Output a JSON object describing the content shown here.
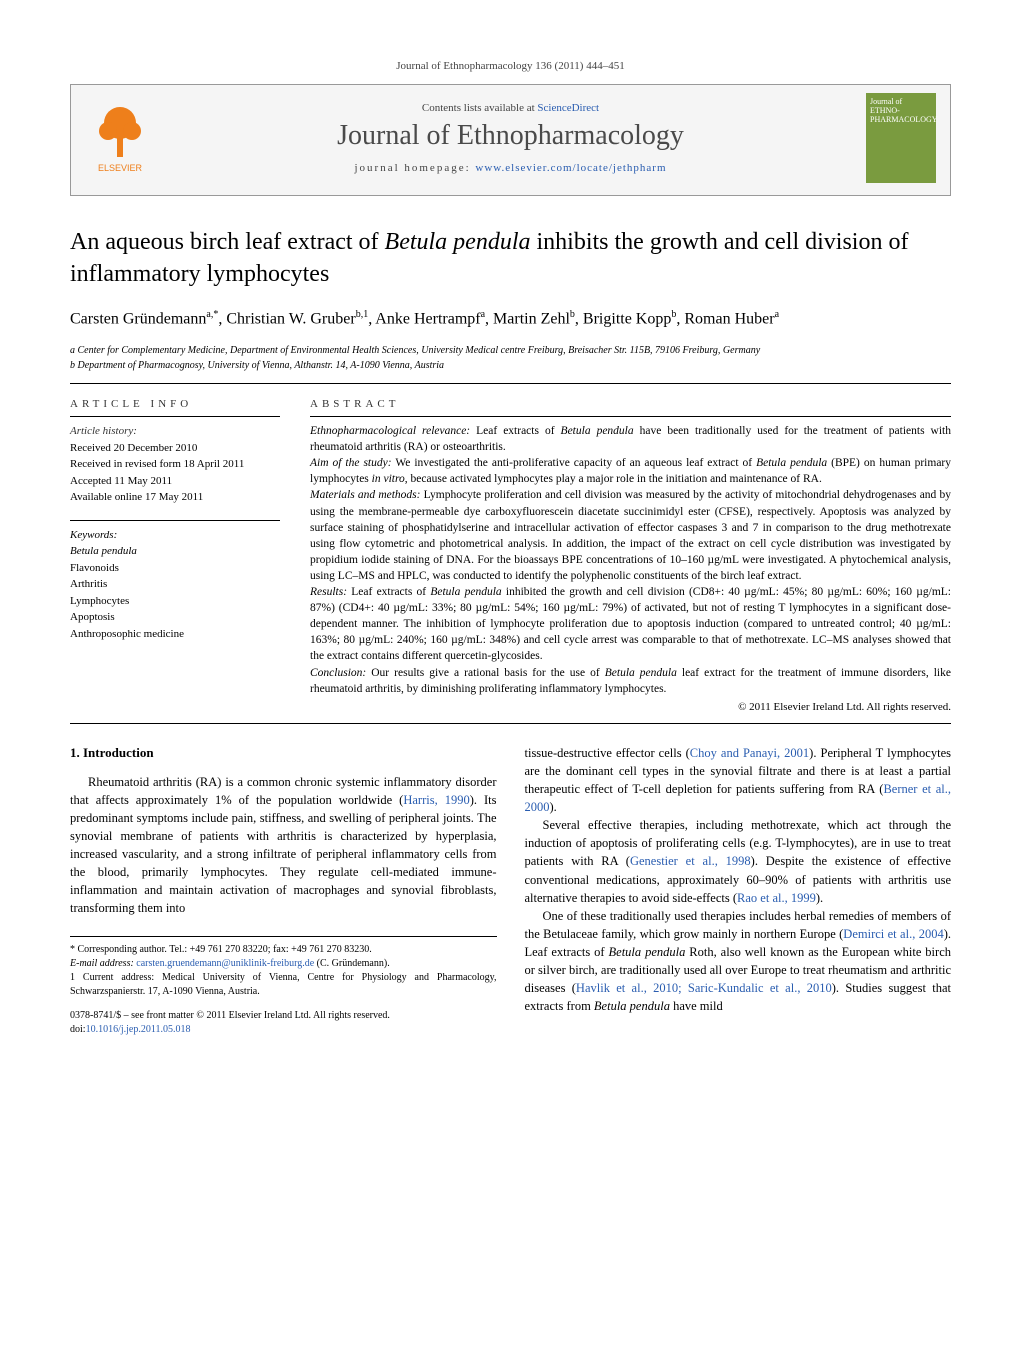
{
  "top_citation": "Journal of Ethnopharmacology 136 (2011) 444–451",
  "header": {
    "contents_prefix": "Contents lists available at ",
    "contents_link": "ScienceDirect",
    "journal_name": "Journal of Ethnopharmacology",
    "homepage_prefix": "journal homepage: ",
    "homepage_link": "www.elsevier.com/locate/jethpharm",
    "left_logo_label": "ELSEVIER",
    "right_logo_lines": [
      "Journal of",
      "ETHNO-",
      "PHARMACOLOGY"
    ]
  },
  "title_parts": {
    "before_em": "An aqueous birch leaf extract of ",
    "em": "Betula pendula",
    "after_em": " inhibits the growth and cell division of inflammatory lymphocytes"
  },
  "authors_html": "Carsten Gründemann<sup>a,*</sup>, Christian W. Gruber<sup>b,1</sup>, Anke Hertrampf<sup>a</sup>, Martin Zehl<sup>b</sup>, Brigitte Kopp<sup>b</sup>, Roman Huber<sup>a</sup>",
  "affiliations": [
    "a Center for Complementary Medicine, Department of Environmental Health Sciences, University Medical centre Freiburg, Breisacher Str. 115B, 79106 Freiburg, Germany",
    "b Department of Pharmacognosy, University of Vienna, Althanstr. 14, A-1090 Vienna, Austria"
  ],
  "article_info": {
    "label": "article info",
    "history_head": "Article history:",
    "history": [
      "Received 20 December 2010",
      "Received in revised form 18 April 2011",
      "Accepted 11 May 2011",
      "Available online 17 May 2011"
    ],
    "keywords_head": "Keywords:",
    "keywords": [
      "Betula pendula",
      "Flavonoids",
      "Arthritis",
      "Lymphocytes",
      "Apoptosis",
      "Anthroposophic medicine"
    ]
  },
  "abstract": {
    "label": "abstract",
    "paras": [
      {
        "label": "Ethnopharmacological relevance:",
        "text": " Leaf extracts of Betula pendula have been traditionally used for the treatment of patients with rheumatoid arthritis (RA) or osteoarthritis."
      },
      {
        "label": "Aim of the study:",
        "text": " We investigated the anti-proliferative capacity of an aqueous leaf extract of Betula pendula (BPE) on human primary lymphocytes in vitro, because activated lymphocytes play a major role in the initiation and maintenance of RA."
      },
      {
        "label": "Materials and methods:",
        "text": " Lymphocyte proliferation and cell division was measured by the activity of mitochondrial dehydrogenases and by using the membrane-permeable dye carboxyfluorescein diacetate succinimidyl ester (CFSE), respectively. Apoptosis was analyzed by surface staining of phosphatidylserine and intracellular activation of effector caspases 3 and 7 in comparison to the drug methotrexate using flow cytometric and photometrical analysis. In addition, the impact of the extract on cell cycle distribution was investigated by propidium iodide staining of DNA. For the bioassays BPE concentrations of 10–160 µg/mL were investigated. A phytochemical analysis, using LC–MS and HPLC, was conducted to identify the polyphenolic constituents of the birch leaf extract."
      },
      {
        "label": "Results:",
        "text": " Leaf extracts of Betula pendula inhibited the growth and cell division (CD8+: 40 µg/mL: 45%; 80 µg/mL: 60%; 160 µg/mL: 87%) (CD4+: 40 µg/mL: 33%; 80 µg/mL: 54%; 160 µg/mL: 79%) of activated, but not of resting T lymphocytes in a significant dose-dependent manner. The inhibition of lymphocyte proliferation due to apoptosis induction (compared to untreated control; 40 µg/mL: 163%; 80 µg/mL: 240%; 160 µg/mL: 348%) and cell cycle arrest was comparable to that of methotrexate. LC–MS analyses showed that the extract contains different quercetin-glycosides."
      },
      {
        "label": "Conclusion:",
        "text": " Our results give a rational basis for the use of Betula pendula leaf extract for the treatment of immune disorders, like rheumatoid arthritis, by diminishing proliferating inflammatory lymphocytes."
      }
    ],
    "copyright": "© 2011 Elsevier Ireland Ltd. All rights reserved."
  },
  "intro": {
    "head": "1. Introduction",
    "left_paras": [
      "Rheumatoid arthritis (RA) is a common chronic systemic inflammatory disorder that affects approximately 1% of the population worldwide (<a class=\"cite\">Harris, 1990</a>). Its predominant symptoms include pain, stiffness, and swelling of peripheral joints. The synovial membrane of patients with arthritis is characterized by hyperplasia, increased vascularity, and a strong infiltrate of peripheral inflammatory cells from the blood, primarily lymphocytes. They regulate cell-mediated immune-inflammation and maintain activation of macrophages and synovial fibroblasts, transforming them into"
    ],
    "right_paras": [
      "tissue-destructive effector cells (<a class=\"cite\">Choy and Panayi, 2001</a>). Peripheral T lymphocytes are the dominant cell types in the synovial filtrate and there is at least a partial therapeutic effect of T-cell depletion for patients suffering from RA (<a class=\"cite\">Berner et al., 2000</a>).",
      "Several effective therapies, including methotrexate, which act through the induction of apoptosis of proliferating cells (e.g. T-lymphocytes), are in use to treat patients with RA (<a class=\"cite\">Genestier et al., 1998</a>). Despite the existence of effective conventional medications, approximately 60–90% of patients with arthritis use alternative therapies to avoid side-effects (<a class=\"cite\">Rao et al., 1999</a>).",
      "One of these traditionally used therapies includes herbal remedies of members of the Betulaceae family, which grow mainly in northern Europe (<a class=\"cite\">Demirci et al., 2004</a>). Leaf extracts of <em class=\"species\">Betula pendula</em> Roth, also well known as the European white birch or silver birch, are traditionally used all over Europe to treat rheumatism and arthritic diseases (<a class=\"cite\">Havlik et al., 2010; Saric-Kundalic et al., 2010</a>). Studies suggest that extracts from <em class=\"species\">Betula pendula</em> have mild"
    ]
  },
  "footnotes": {
    "corresponding": "* Corresponding author. Tel.: +49 761 270 83220; fax: +49 761 270 83230.",
    "email_label": "E-mail address: ",
    "email": "carsten.gruendemann@uniklinik-freiburg.de",
    "email_who": " (C. Gründemann).",
    "note1": "1 Current address: Medical University of Vienna, Centre for Physiology and Pharmacology, Schwarzspanierstr. 17, A-1090 Vienna, Austria."
  },
  "bottom": {
    "issn": "0378-8741/$ – see front matter © 2011 Elsevier Ireland Ltd. All rights reserved.",
    "doi_label": "doi:",
    "doi": "10.1016/j.jep.2011.05.018"
  },
  "colors": {
    "link": "#2a5db0",
    "elsevier_orange": "#ee7f1b",
    "cover_green": "#7a9b3f"
  }
}
